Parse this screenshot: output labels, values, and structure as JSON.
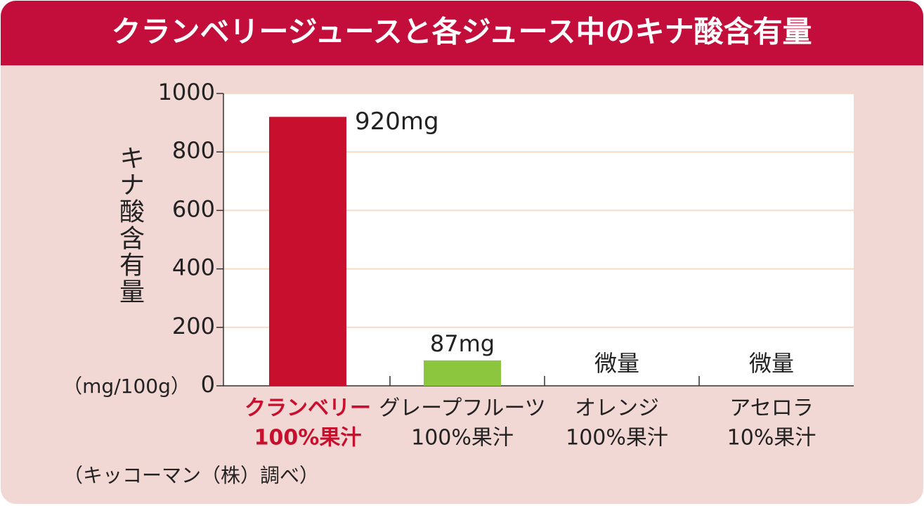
{
  "chart_data": {
    "type": "bar",
    "title": "クランベリージュースと各ジュース中のキナ酸含有量",
    "y_label": "キナ酸含有量",
    "y_unit": "（mg/100g）",
    "source": "（キッコーマン（株）調べ）",
    "categories": [
      [
        "クランベリー",
        "100%果汁"
      ],
      [
        "グレープフルーツ",
        "100%果汁"
      ],
      [
        "オレンジ",
        "100%果汁"
      ],
      [
        "アセロラ",
        "10%果汁"
      ]
    ],
    "values": [
      920,
      87,
      null,
      null
    ],
    "value_labels": [
      "920mg",
      "87mg",
      "微量",
      "微量"
    ],
    "colors": [
      "#c8102e",
      "#8cc63f",
      "#8cc63f",
      "#8cc63f"
    ],
    "highlight_category": 0,
    "ylim": [
      0,
      1000
    ],
    "yticks": [
      0,
      200,
      400,
      600,
      800,
      1000
    ],
    "grid": true
  }
}
